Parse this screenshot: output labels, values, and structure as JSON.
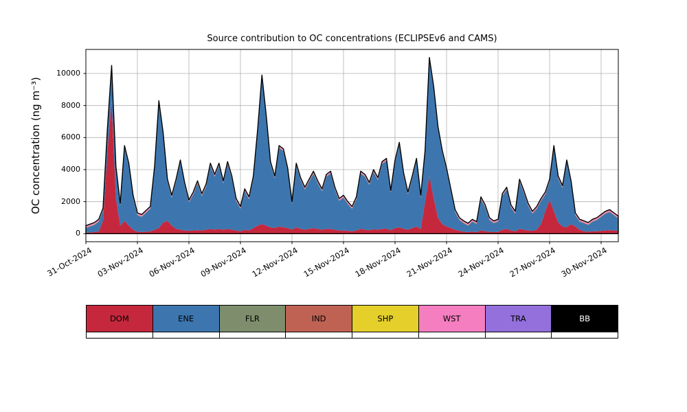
{
  "chart_data": {
    "type": "area",
    "stacked": true,
    "title": "Source contribution to OC concentrations (ECLIPSEv6 and CAMS)",
    "ylabel": "OC concentration (ng m⁻³)",
    "xlabel": "",
    "grid": true,
    "legend_position": "bottom-table",
    "ylim": [
      -500,
      11500
    ],
    "yticks": [
      0,
      2000,
      4000,
      6000,
      8000,
      10000
    ],
    "x_start_day": 0,
    "x_step_days": 0.25,
    "x_span_days": 31,
    "xticks": [
      {
        "day": 0,
        "label": "31-Oct-2024"
      },
      {
        "day": 3,
        "label": "03-Nov-2024"
      },
      {
        "day": 6,
        "label": "06-Nov-2024"
      },
      {
        "day": 9,
        "label": "09-Nov-2024"
      },
      {
        "day": 12,
        "label": "12-Nov-2024"
      },
      {
        "day": 15,
        "label": "15-Nov-2024"
      },
      {
        "day": 18,
        "label": "18-Nov-2024"
      },
      {
        "day": 21,
        "label": "21-Nov-2024"
      },
      {
        "day": 24,
        "label": "24-Nov-2024"
      },
      {
        "day": 27,
        "label": "27-Nov-2024"
      },
      {
        "day": 30,
        "label": "30-Nov-2024"
      }
    ],
    "outline_color": "#000000",
    "grid_color": "#b0b0b0",
    "series": [
      {
        "name": "DOM",
        "color": "#C5283D",
        "values": [
          60,
          80,
          100,
          150,
          800,
          5000,
          8300,
          2200,
          500,
          800,
          500,
          250,
          120,
          100,
          120,
          150,
          250,
          350,
          700,
          800,
          500,
          300,
          250,
          200,
          180,
          200,
          220,
          200,
          250,
          300,
          250,
          300,
          250,
          300,
          250,
          200,
          150,
          250,
          200,
          350,
          500,
          600,
          500,
          400,
          350,
          450,
          400,
          350,
          250,
          400,
          300,
          250,
          300,
          350,
          300,
          250,
          300,
          300,
          250,
          200,
          200,
          180,
          150,
          200,
          300,
          250,
          220,
          280,
          250,
          300,
          320,
          220,
          350,
          400,
          300,
          250,
          350,
          450,
          300,
          2000,
          3600,
          2200,
          1000,
          600,
          450,
          350,
          250,
          180,
          120,
          100,
          120,
          100,
          200,
          150,
          120,
          100,
          110,
          250,
          300,
          200,
          150,
          300,
          250,
          200,
          180,
          250,
          600,
          1400,
          2100,
          1400,
          700,
          450,
          400,
          600,
          450,
          250,
          150,
          120,
          150,
          150,
          180,
          200,
          220,
          200,
          180
        ]
      },
      {
        "name": "ENE",
        "color": "#3D76AF",
        "values": [
          290,
          370,
          450,
          600,
          650,
          1350,
          2050,
          1850,
          1250,
          4550,
          3750,
          2000,
          1030,
          950,
          1180,
          1400,
          3800,
          7800,
          5450,
          2450,
          1750,
          2950,
          4200,
          2850,
          1770,
          2250,
          2930,
          2150,
          2700,
          3950,
          3300,
          3950,
          2900,
          4050,
          3200,
          1850,
          1400,
          2400,
          1950,
          3100,
          5850,
          9150,
          6750,
          3950,
          3100,
          4900,
          4750,
          3600,
          1600,
          3850,
          3050,
          2500,
          2950,
          3400,
          2850,
          2400,
          3250,
          3450,
          2500,
          1850,
          2050,
          1670,
          1400,
          1950,
          3450,
          3300,
          2830,
          3570,
          3100,
          4050,
          4230,
          2330,
          4100,
          5150,
          3350,
          2200,
          3100,
          4100,
          1950,
          3050,
          7250,
          6850,
          5550,
          4450,
          3500,
          2300,
          1100,
          670,
          530,
          400,
          630,
          500,
          1950,
          1500,
          730,
          550,
          640,
          2100,
          2450,
          1450,
          1100,
          2950,
          2300,
          1550,
          1070,
          1300,
          1450,
          1050,
          1150,
          3950,
          2750,
          2400,
          4050,
          2550,
          700,
          500,
          500,
          430,
          600,
          700,
          870,
          1050,
          1130,
          950,
          770
        ]
      },
      {
        "name": "FLR",
        "color": "#7E8E6C",
        "constant": 15
      },
      {
        "name": "IND",
        "color": "#BF6254",
        "constant": 25
      },
      {
        "name": "SHP",
        "color": "#E4CF2B",
        "constant": 8
      },
      {
        "name": "WST",
        "color": "#F57EC0",
        "constant": 70
      },
      {
        "name": "TRA",
        "color": "#9370DB",
        "constant": 30
      },
      {
        "name": "BB",
        "color": "#000000",
        "constant": 2
      }
    ],
    "legend": [
      {
        "label": "DOM",
        "color": "#C5283D",
        "text_color": "#000000"
      },
      {
        "label": "ENE",
        "color": "#3D76AF",
        "text_color": "#000000"
      },
      {
        "label": "FLR",
        "color": "#7E8E6C",
        "text_color": "#000000"
      },
      {
        "label": "IND",
        "color": "#BF6254",
        "text_color": "#000000"
      },
      {
        "label": "SHP",
        "color": "#E4CF2B",
        "text_color": "#000000"
      },
      {
        "label": "WST",
        "color": "#F57EC0",
        "text_color": "#000000"
      },
      {
        "label": "TRA",
        "color": "#9370DB",
        "text_color": "#000000"
      },
      {
        "label": "BB",
        "color": "#000000",
        "text_color": "#ffffff"
      }
    ]
  }
}
